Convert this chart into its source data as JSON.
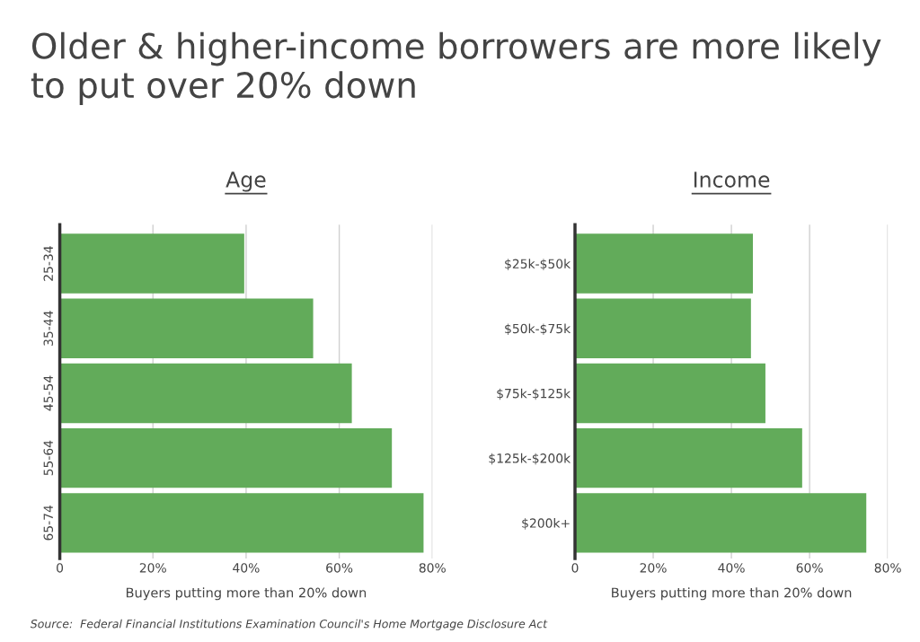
{
  "chart_data": [
    {
      "type": "bar",
      "orientation": "horizontal",
      "title": "Age",
      "categories": [
        "25-34",
        "35-44",
        "45-54",
        "55-64",
        "65-74"
      ],
      "values": [
        39.6,
        54.4,
        62.7,
        71.3,
        78.1
      ],
      "color": "#62ab5a",
      "xlabel": "Buyers putting more than 20% down",
      "xlim": [
        0,
        80
      ],
      "xticks": [
        0,
        {
          "value": 20,
          "label": "20%"
        },
        {
          "value": 40,
          "label": "40%"
        },
        {
          "value": 60,
          "label": "60%"
        },
        {
          "value": 80,
          "label": "80%"
        }
      ],
      "grid": "x",
      "annotations": [
        "Older & higher-income borrowers are more likely to put over 20% down"
      ]
    },
    {
      "type": "bar",
      "orientation": "horizontal",
      "title": "Income",
      "categories": [
        "$25k-$50k",
        "$50k-$75k",
        "$75k-$125k",
        "$125k-$200k",
        "$200k+"
      ],
      "values": [
        45.5,
        45.0,
        48.7,
        58.1,
        74.5
      ],
      "color": "#62ab5a",
      "xlabel": "Buyers putting more than 20% down",
      "xlim": [
        0,
        80
      ],
      "xticks": [
        0,
        {
          "value": 20,
          "label": "20%"
        },
        {
          "value": 40,
          "label": "40%"
        },
        {
          "value": 60,
          "label": "60%"
        },
        {
          "value": 80,
          "label": "80%"
        }
      ],
      "grid": "x",
      "annotations": [
        "Source:  Federal Financial Institutions Examination Council's Home Mortgage Disclosure Act"
      ]
    }
  ]
}
